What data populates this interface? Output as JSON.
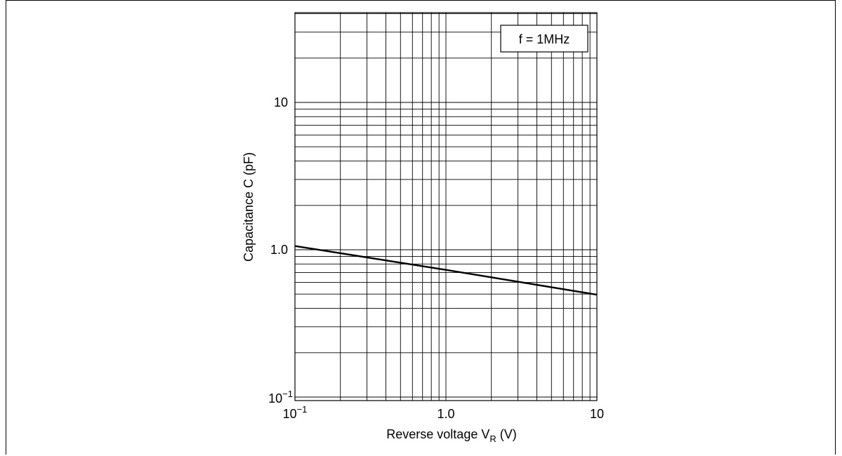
{
  "chart_data": {
    "type": "line",
    "x_scale": "log",
    "y_scale": "log",
    "xlim": [
      0.1,
      10
    ],
    "ylim": [
      0.1,
      40
    ],
    "grid": true,
    "x_ticks": [
      {
        "value": 0.1,
        "base": "10",
        "exp": "−1"
      },
      {
        "value": 1,
        "base": "1.0",
        "exp": ""
      },
      {
        "value": 10,
        "base": "10",
        "exp": ""
      }
    ],
    "y_ticks": [
      {
        "value": 0.1,
        "base": "10",
        "exp": "−1"
      },
      {
        "value": 1,
        "base": "1.0",
        "exp": ""
      },
      {
        "value": 10,
        "base": "10",
        "exp": ""
      }
    ],
    "xlabel": {
      "main": "Reverse voltage  V",
      "sub": "R",
      "unit": " (V)"
    },
    "ylabel": "Capacitance  C  (pF)",
    "annotation": "f = 1MHz",
    "series": [
      {
        "x": [
          0.1,
          1,
          10
        ],
        "y": [
          1.06,
          0.73,
          0.495
        ]
      }
    ]
  }
}
